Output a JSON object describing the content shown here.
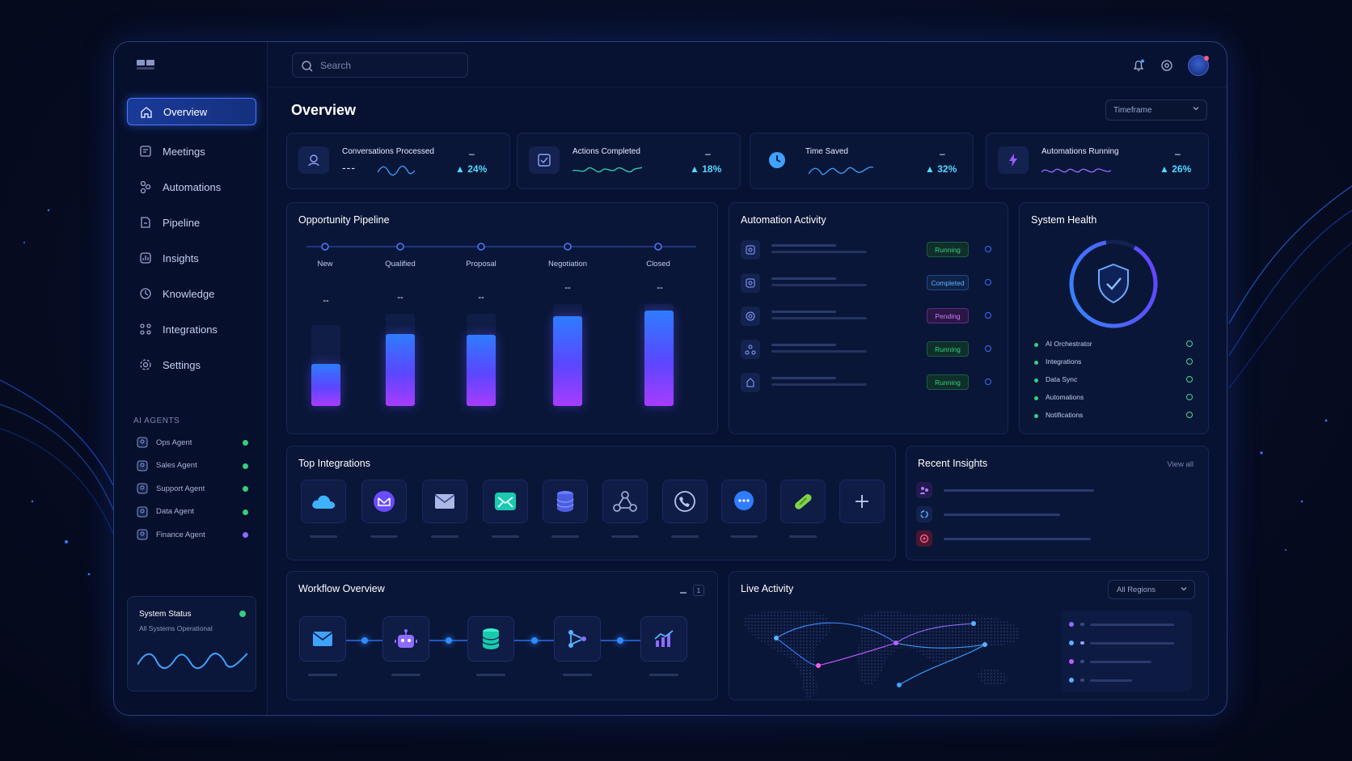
{
  "search": {
    "placeholder": "Search"
  },
  "nav": {
    "items": [
      {
        "label": "Overview",
        "icon": "home-icon",
        "active": true
      },
      {
        "label": "Meetings",
        "icon": "meetings-icon"
      },
      {
        "label": "Automations",
        "icon": "automations-icon"
      },
      {
        "label": "Pipeline",
        "icon": "pipeline-icon"
      },
      {
        "label": "Insights",
        "icon": "insights-icon"
      },
      {
        "label": "Knowledge",
        "icon": "knowledge-icon"
      },
      {
        "label": "Integrations",
        "icon": "integrations-icon"
      },
      {
        "label": "Settings",
        "icon": "gear-icon"
      }
    ]
  },
  "agents": {
    "section_label": "AI AGENTS",
    "items": [
      {
        "label": "Ops Agent",
        "status_color": "#35d07f"
      },
      {
        "label": "Sales Agent",
        "status_color": "#35d07f"
      },
      {
        "label": "Support Agent",
        "status_color": "#35d07f"
      },
      {
        "label": "Data Agent",
        "status_color": "#35d07f"
      },
      {
        "label": "Finance Agent",
        "status_color": "#8e6cff"
      }
    ]
  },
  "system_status": {
    "title": "System Status",
    "subtitle": "All Systems Operational",
    "color": "#35d07f"
  },
  "page": {
    "title": "Overview",
    "timeframe": "Timeframe"
  },
  "kpis": [
    {
      "label": "Conversations Processed",
      "value": "---",
      "delta_placeholder": "–",
      "delta": "24%",
      "icon": "conversations-icon"
    },
    {
      "label": "Actions Completed",
      "value": "",
      "delta_placeholder": "–",
      "delta": "18%",
      "icon": "checkbox-icon"
    },
    {
      "label": "Time Saved",
      "value": "",
      "delta_placeholder": "–",
      "delta": "32%",
      "icon": "clock-icon"
    },
    {
      "label": "Automations Running",
      "value": "",
      "delta_placeholder": "–",
      "delta": "26%",
      "icon": "lightning-icon"
    }
  ],
  "pipeline": {
    "title": "Opportunity Pipeline",
    "stages": [
      "New",
      "Qualified",
      "Proposal",
      "Negotiation",
      "Closed"
    ],
    "bar_labels": [
      "--",
      "--",
      "--",
      "--",
      "--"
    ],
    "fill_fractions": [
      0.52,
      0.78,
      0.77,
      0.88,
      0.94
    ]
  },
  "automation_activity": {
    "title": "Automation Activity",
    "rows": [
      {
        "status": "Running",
        "color": "#35d07f"
      },
      {
        "status": "Completed",
        "color": "#3fa2ff"
      },
      {
        "status": "Pending",
        "color": "#c25cff"
      },
      {
        "status": "Running",
        "color": "#35d07f"
      },
      {
        "status": "Running",
        "color": "#35d07f"
      }
    ]
  },
  "system_health": {
    "title": "System Health",
    "items": [
      "AI Orchestrator",
      "Integrations",
      "Data Sync",
      "Automations",
      "Notifications"
    ]
  },
  "top_integrations": {
    "title": "Top Integrations",
    "icons": [
      "cloud-icon",
      "mail-app-icon",
      "envelope-icon",
      "email-teal-icon",
      "database-icon",
      "network-icon",
      "phone-icon",
      "chat-icon",
      "link-icon",
      "plus-icon"
    ]
  },
  "recent_insights": {
    "title": "Recent Insights",
    "view_all": "View all"
  },
  "workflow": {
    "title": "Workflow Overview",
    "page": "1",
    "steps": [
      "envelope-icon",
      "robot-icon",
      "database-icon",
      "branch-icon",
      "chart-icon"
    ]
  },
  "live_activity": {
    "title": "Live Activity",
    "region": "All Regions"
  }
}
